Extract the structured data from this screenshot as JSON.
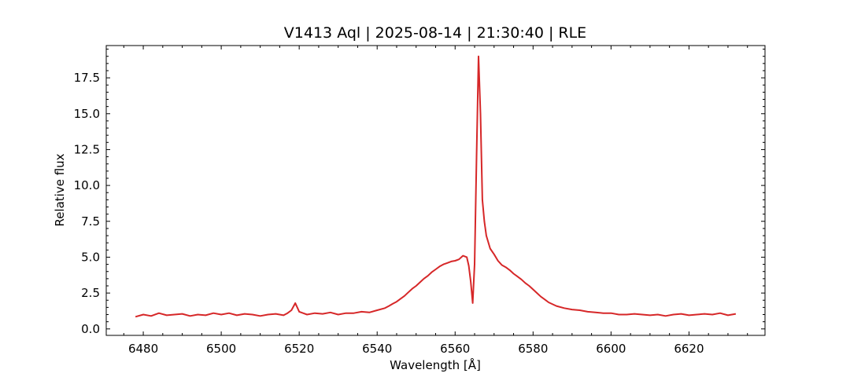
{
  "chart_data": {
    "type": "line",
    "title": "V1413 Aql | 2025-08-14 | 21:30:40 | RLE",
    "xlabel": "Wavelength [Å]",
    "ylabel": "Relative flux",
    "xlim": [
      6470.5,
      6639.5
    ],
    "ylim": [
      -0.45,
      19.75
    ],
    "xticks": [
      6480,
      6500,
      6520,
      6540,
      6560,
      6580,
      6600,
      6620
    ],
    "xtick_labels": [
      "6480",
      "6500",
      "6520",
      "6540",
      "6560",
      "6580",
      "6600",
      "6620"
    ],
    "xminor_step": 5,
    "yticks": [
      0.0,
      2.5,
      5.0,
      7.5,
      10.0,
      12.5,
      15.0,
      17.5
    ],
    "ytick_labels": [
      "0.0",
      "2.5",
      "5.0",
      "7.5",
      "10.0",
      "12.5",
      "15.0",
      "17.5"
    ],
    "yminor_step": 0.5,
    "grid": false,
    "legend": "none",
    "series": [
      {
        "color": "#d62728",
        "x": [
          6478,
          6480,
          6482,
          6484,
          6486,
          6488,
          6490,
          6492,
          6494,
          6496,
          6498,
          6500,
          6502,
          6504,
          6506,
          6508,
          6510,
          6512,
          6514,
          6516,
          6517,
          6518,
          6519,
          6520,
          6521,
          6522,
          6524,
          6526,
          6528,
          6530,
          6532,
          6534,
          6536,
          6538,
          6540,
          6542,
          6543,
          6544,
          6545,
          6546,
          6547,
          6548,
          6549,
          6550,
          6551,
          6552,
          6553,
          6554,
          6555,
          6556,
          6557,
          6558,
          6559,
          6560,
          6561,
          6562,
          6563,
          6563.5,
          6564,
          6564.5,
          6565,
          6565.5,
          6566,
          6566.5,
          6567,
          6567.5,
          6568,
          6569,
          6570,
          6571,
          6572,
          6573,
          6574,
          6575,
          6576,
          6577,
          6578,
          6579,
          6580,
          6581,
          6582,
          6583,
          6584,
          6586,
          6588,
          6590,
          6592,
          6594,
          6596,
          6598,
          6600,
          6602,
          6604,
          6606,
          6608,
          6610,
          6612,
          6614,
          6616,
          6618,
          6620,
          6622,
          6624,
          6626,
          6628,
          6630,
          6632
        ],
        "y": [
          0.85,
          1.0,
          0.9,
          1.1,
          0.95,
          1.0,
          1.05,
          0.9,
          1.0,
          0.95,
          1.1,
          1.0,
          1.1,
          0.95,
          1.05,
          1.0,
          0.9,
          1.0,
          1.05,
          0.95,
          1.1,
          1.3,
          1.8,
          1.2,
          1.1,
          1.0,
          1.1,
          1.05,
          1.15,
          1.0,
          1.1,
          1.1,
          1.2,
          1.15,
          1.3,
          1.45,
          1.6,
          1.75,
          1.9,
          2.1,
          2.3,
          2.55,
          2.8,
          3.0,
          3.25,
          3.5,
          3.7,
          3.95,
          4.15,
          4.35,
          4.5,
          4.6,
          4.7,
          4.75,
          4.85,
          5.1,
          5.0,
          4.4,
          3.3,
          1.8,
          4.5,
          12.0,
          19.0,
          15.0,
          9.0,
          7.5,
          6.5,
          5.6,
          5.2,
          4.75,
          4.45,
          4.3,
          4.1,
          3.85,
          3.65,
          3.45,
          3.2,
          3.0,
          2.75,
          2.5,
          2.25,
          2.05,
          1.85,
          1.6,
          1.45,
          1.35,
          1.3,
          1.2,
          1.15,
          1.1,
          1.1,
          1.0,
          1.0,
          1.05,
          1.0,
          0.95,
          1.0,
          0.9,
          1.0,
          1.05,
          0.95,
          1.0,
          1.05,
          1.0,
          1.1,
          0.95,
          1.05
        ]
      }
    ]
  }
}
